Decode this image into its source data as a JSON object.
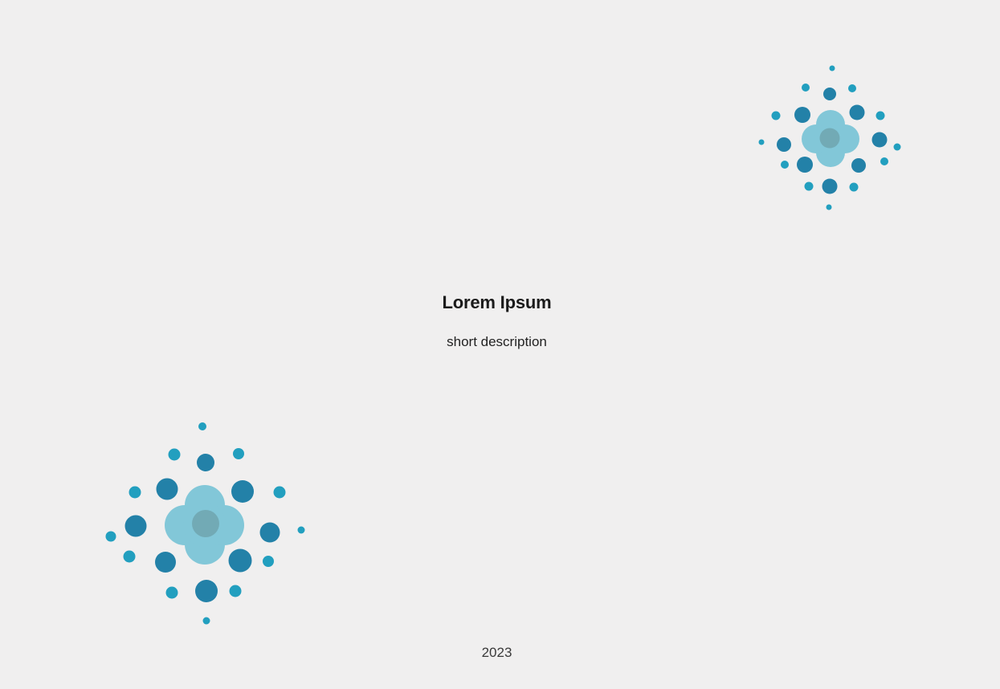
{
  "main": {
    "title": "Lorem Ipsum",
    "description": "short description"
  },
  "footer": {
    "year": "2023"
  },
  "decorations": [
    {
      "name": "flower-icon",
      "position": "top-right"
    },
    {
      "name": "flower-icon",
      "position": "bottom-left"
    }
  ],
  "colors": {
    "background": "#f0efef",
    "petal_light": "#82c7d8",
    "flower_core": "#72aab5",
    "dot_dark": "#2381a8",
    "dot_bright": "#229fbf",
    "text": "#1b1b1b"
  }
}
